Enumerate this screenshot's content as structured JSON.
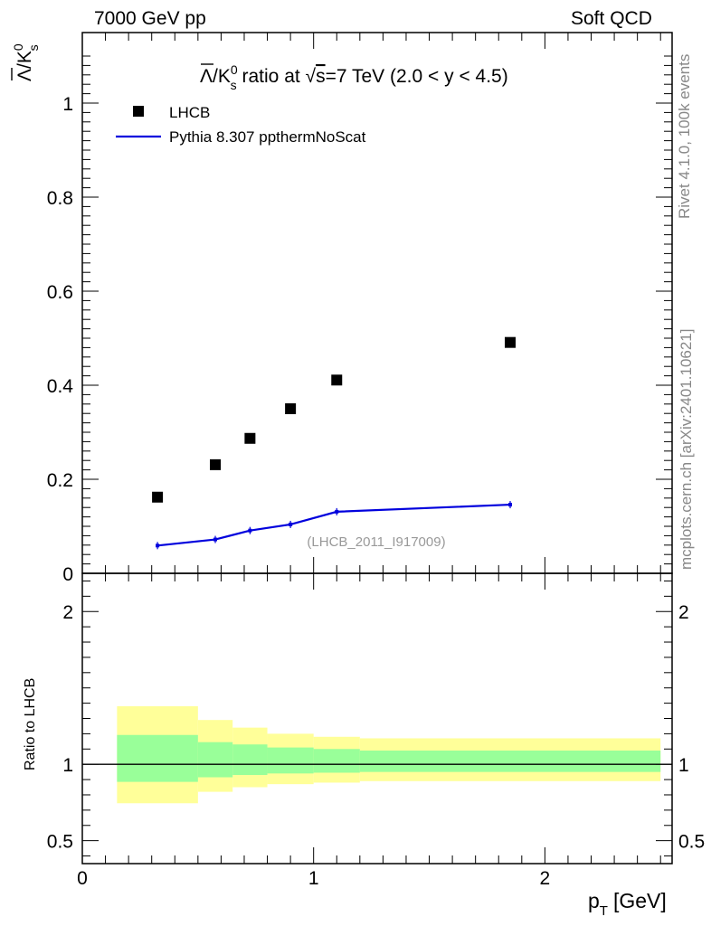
{
  "header": {
    "left": "7000 GeV pp",
    "right": "Soft QCD"
  },
  "side": {
    "rivet": "Rivet 4.1.0,  100k events",
    "mcplots": "mcplots.cern.ch [arXiv:2401.10621]"
  },
  "chart_data": {
    "type": "scatter",
    "title": "Λ̄/K⁰s ratio at √s=7 TeV (2.0 < y < 4.5)",
    "title_parts": {
      "prefix": "/K",
      "sup": "0",
      "sub": "s",
      "mid": " ratio at ",
      "sqrt_s": "s",
      "suffix": "=7 TeV (2.0 < y < 4.5)",
      "lambda": "Λ"
    },
    "ylabel": "Λ̄/K⁰s",
    "xlabel": "p_T [GeV]",
    "xlabel_parts": {
      "p": "p",
      "sub": "T",
      "unit": "[GeV]"
    },
    "xlim": [
      0,
      2.55
    ],
    "ylim": [
      0,
      1.15
    ],
    "analysis_tag": "(LHCB_2011_I917009)",
    "x_ticks": [
      "0",
      "1",
      "2"
    ],
    "y_ticks": [
      "0",
      "0.2",
      "0.4",
      "0.6",
      "0.8",
      "1"
    ],
    "series": [
      {
        "name": "LHCB",
        "kind": "markers",
        "color": "#000000",
        "x": [
          0.325,
          0.575,
          0.725,
          0.9,
          1.1,
          1.85
        ],
        "y": [
          0.162,
          0.231,
          0.287,
          0.35,
          0.411,
          0.491
        ]
      },
      {
        "name": "Pythia 8.307 ppthermNoScat",
        "kind": "line",
        "color": "#0000dd",
        "x": [
          0.325,
          0.575,
          0.725,
          0.9,
          1.1,
          1.85
        ],
        "y": [
          0.059,
          0.072,
          0.091,
          0.104,
          0.131,
          0.146
        ]
      }
    ],
    "ratio": {
      "ylabel": "Ratio to LHCB",
      "ylim": [
        0.35,
        2.25
      ],
      "y_ticks": [
        "0.5",
        "1",
        "2"
      ],
      "bins": [
        {
          "lo": 0.15,
          "hi": 0.5,
          "inner": [
            0.885,
            1.192
          ],
          "outer": [
            0.745,
            1.38
          ]
        },
        {
          "lo": 0.5,
          "hi": 0.65,
          "inner": [
            0.915,
            1.145
          ],
          "outer": [
            0.82,
            1.29
          ]
        },
        {
          "lo": 0.65,
          "hi": 0.8,
          "inner": [
            0.93,
            1.13
          ],
          "outer": [
            0.85,
            1.24
          ]
        },
        {
          "lo": 0.8,
          "hi": 1.0,
          "inner": [
            0.94,
            1.11
          ],
          "outer": [
            0.87,
            1.2
          ]
        },
        {
          "lo": 1.0,
          "hi": 1.2,
          "inner": [
            0.945,
            1.1
          ],
          "outer": [
            0.88,
            1.18
          ]
        },
        {
          "lo": 1.2,
          "hi": 2.5,
          "inner": [
            0.95,
            1.09
          ],
          "outer": [
            0.89,
            1.17
          ]
        }
      ]
    }
  }
}
